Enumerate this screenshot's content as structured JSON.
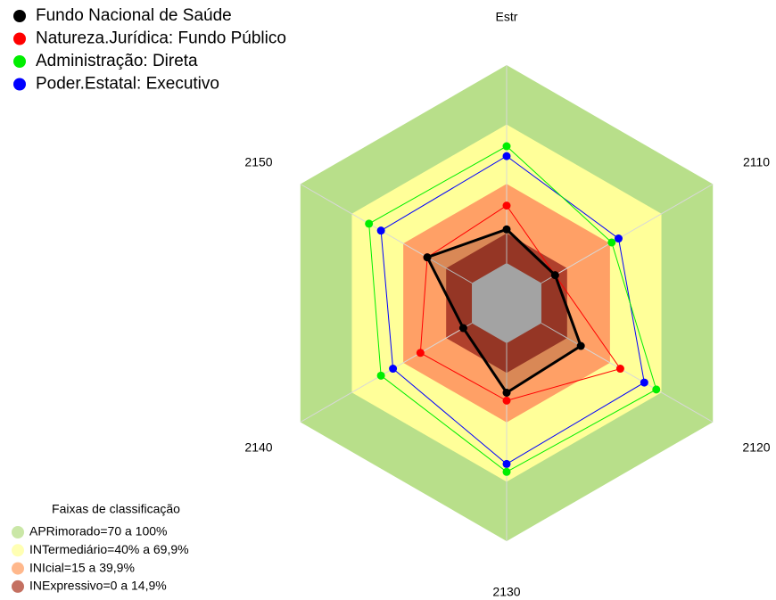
{
  "chart_data": {
    "type": "radar",
    "categories": [
      "Estr",
      "2110",
      "2120",
      "2130",
      "2140",
      "2150"
    ],
    "rlim": [
      0,
      100
    ],
    "series": [
      {
        "name": "Fundo Nacional de Saúde",
        "color": "#000000",
        "values": [
          17,
          8,
          23,
          25,
          5,
          26
        ]
      },
      {
        "name": "Natureza.Jurídica: Fundo Público",
        "color": "#ff0000",
        "values": [
          29,
          8,
          46,
          29,
          30,
          26
        ]
      },
      {
        "name": "Administração: Direta",
        "color": "#00ee00",
        "values": [
          59,
          41,
          67,
          65,
          53,
          60
        ]
      },
      {
        "name": "Poder.Estatal: Executivo",
        "color": "#0000ff",
        "values": [
          54,
          45,
          60,
          61,
          46,
          53
        ]
      }
    ],
    "bands_title": "Faixas de classificação",
    "bands": [
      {
        "label": "APRimorado=70 a 100%",
        "color": "#b8df8a",
        "from": 70,
        "to": 100
      },
      {
        "label": "INTermediário=40% a 69,9%",
        "color": "#ffff99",
        "from": 40,
        "to": 70
      },
      {
        "label": "INIcial=15 a 39,9%",
        "color": "#ffa066",
        "from": 15,
        "to": 40
      },
      {
        "label": "INExpressivo=0 a 14,9%",
        "color": "#b0402c",
        "from": 0,
        "to": 15
      }
    ]
  }
}
